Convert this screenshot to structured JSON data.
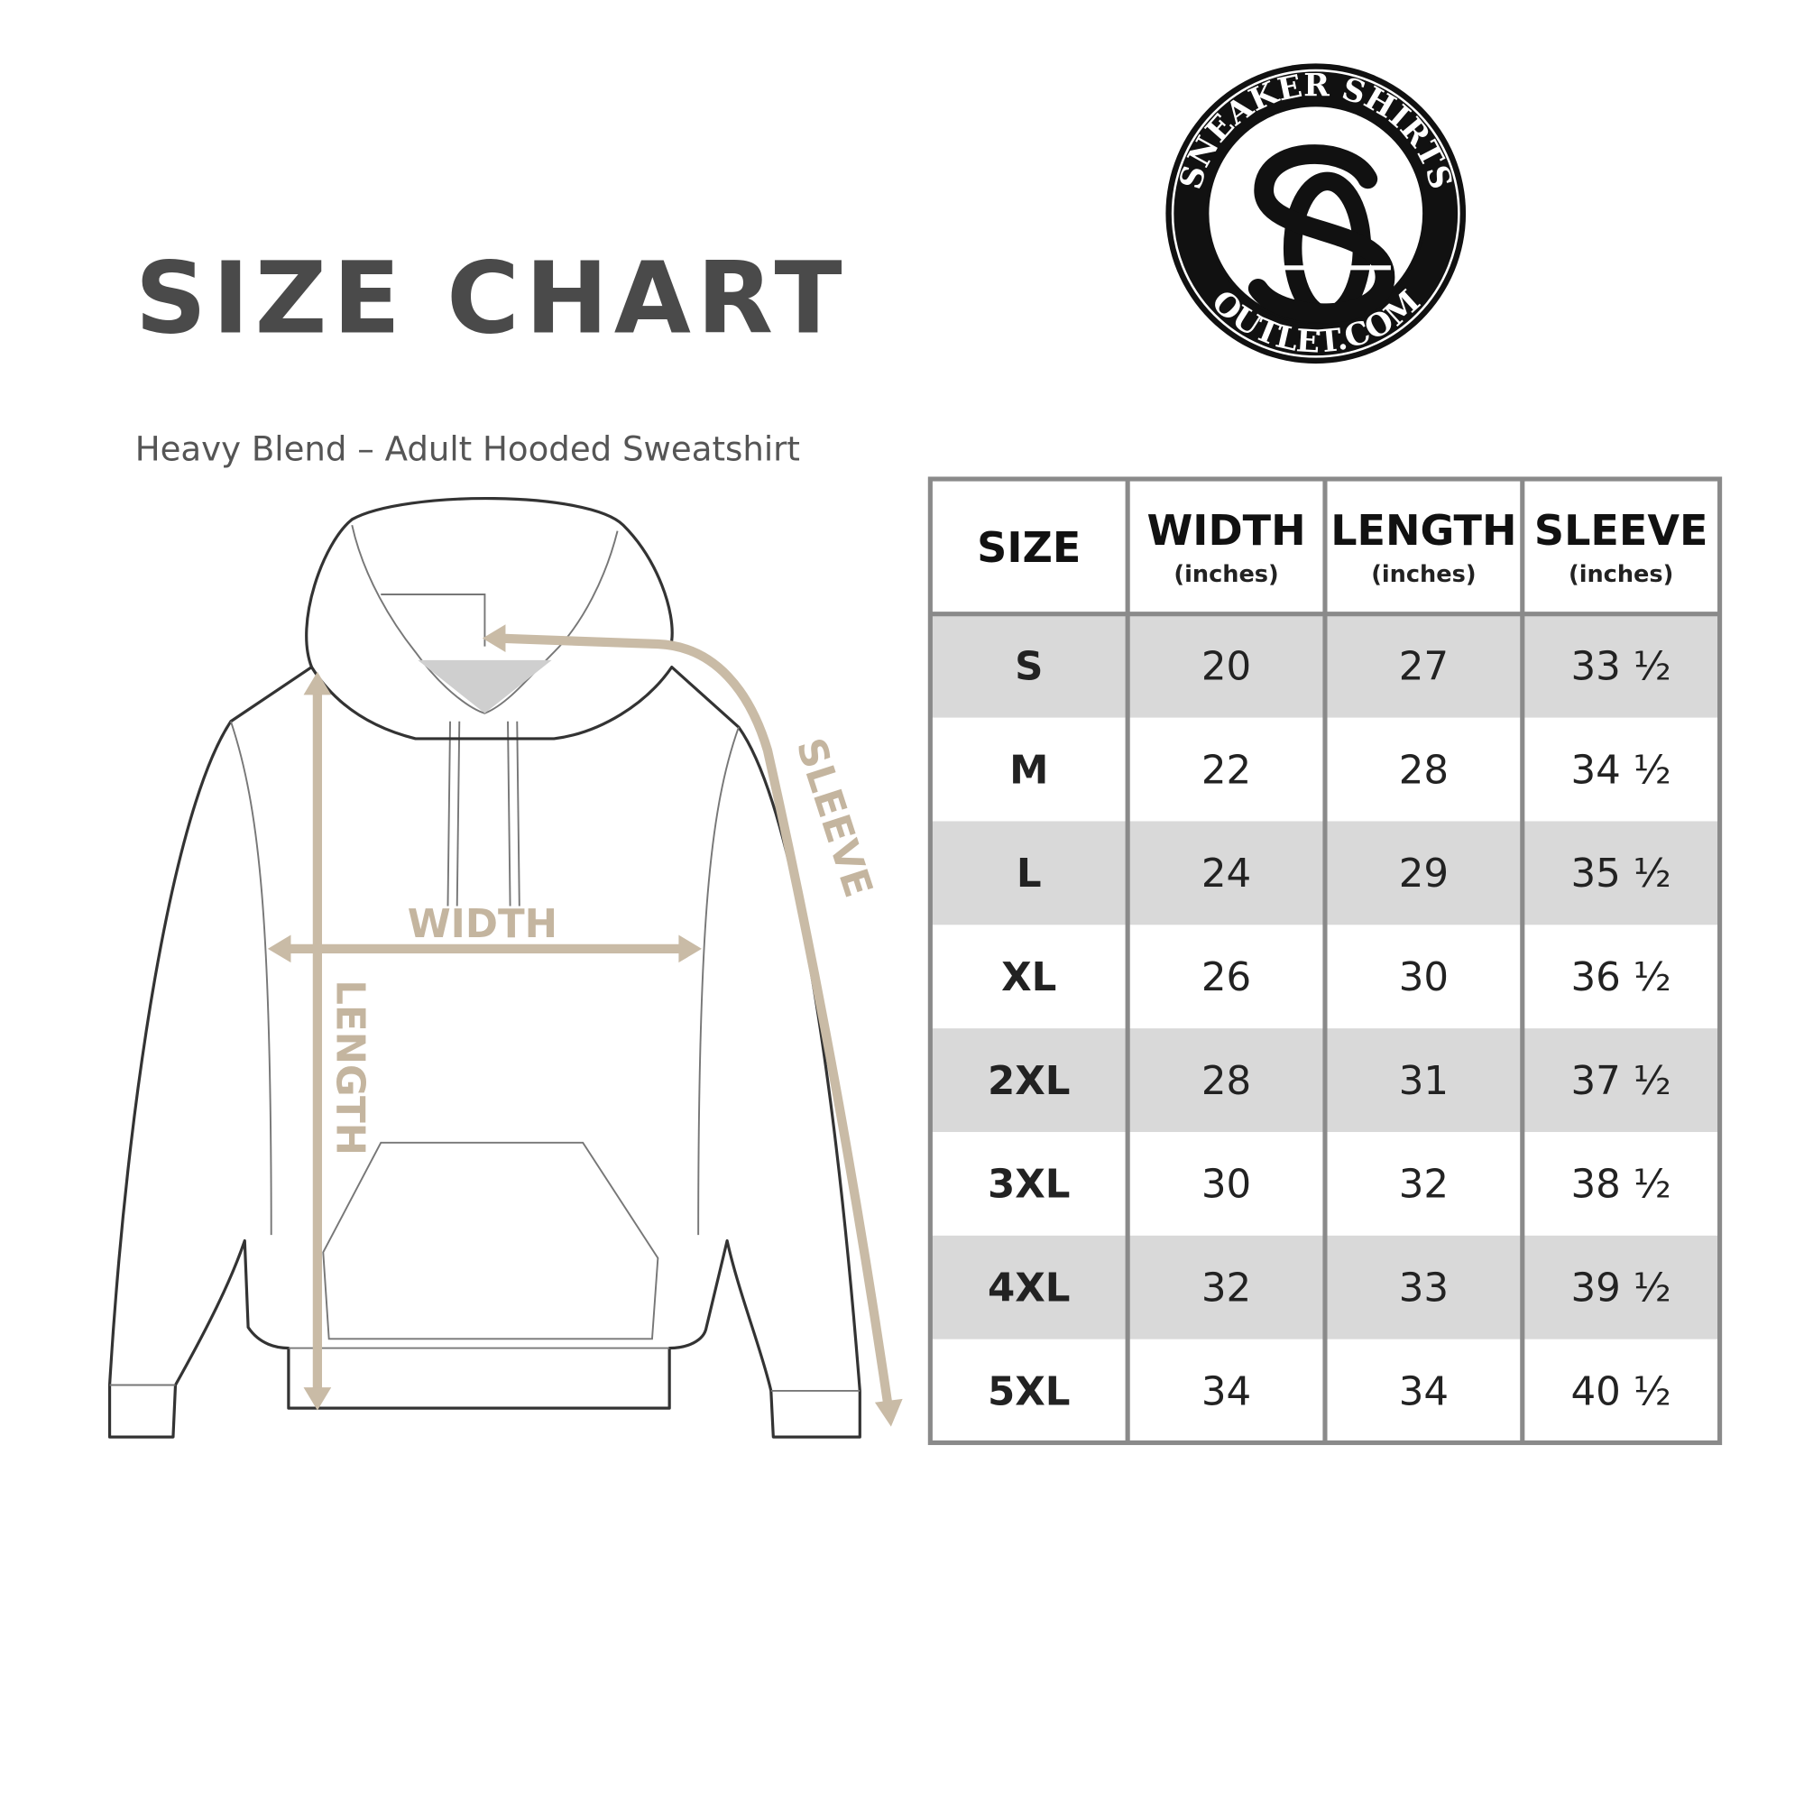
{
  "header": {
    "title": "SIZE CHART",
    "subtitle": "Heavy Blend – Adult Hooded Sweatshirt"
  },
  "logo": {
    "top_text": "SNEAKER SHIRTS",
    "bottom_text": "OUTLET.COM"
  },
  "diagram": {
    "labels": {
      "width": "WIDTH",
      "length": "LENGTH",
      "sleeve": "SLEEVE"
    }
  },
  "table": {
    "columns": [
      {
        "title": "SIZE"
      },
      {
        "title": "WIDTH",
        "unit": "(inches)"
      },
      {
        "title": "LENGTH",
        "unit": "(inches)"
      },
      {
        "title": "SLEEVE",
        "unit": "(inches)"
      }
    ],
    "rows": [
      [
        "S",
        20,
        27,
        "33 ½"
      ],
      [
        "M",
        22,
        28,
        "34 ½"
      ],
      [
        "L",
        24,
        29,
        "35 ½"
      ],
      [
        "XL",
        26,
        30,
        "36 ½"
      ],
      [
        "2XL",
        28,
        31,
        "37 ½"
      ],
      [
        "3XL",
        30,
        32,
        "38 ½"
      ],
      [
        "4XL",
        32,
        33,
        "39 ½"
      ],
      [
        "5XL",
        34,
        34,
        "40 ½"
      ]
    ]
  }
}
